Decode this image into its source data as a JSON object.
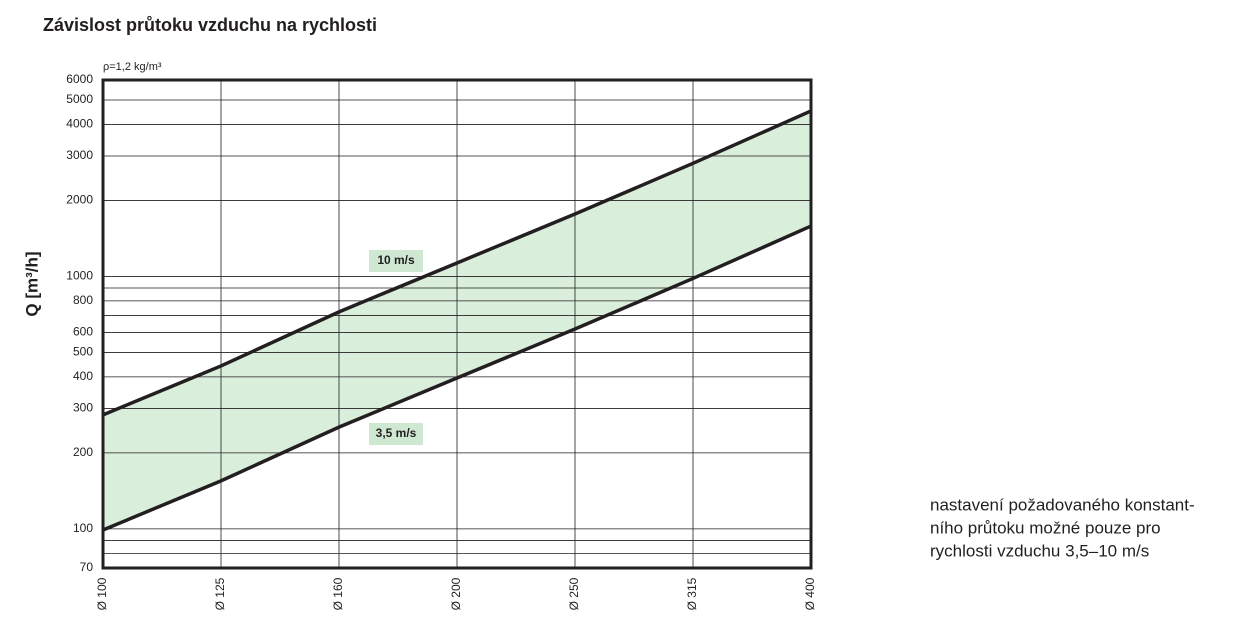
{
  "chart_data": {
    "type": "band",
    "title": "Závislost průtoku vzduchu na rychlosti",
    "subtitle": "ρ=1,2 kg/m³",
    "y_label": "Q [m³/h]",
    "categories": [
      "Ø 100",
      "Ø 125",
      "Ø 160",
      "Ø 200",
      "Ø 250",
      "Ø 315",
      "Ø 400"
    ],
    "series": [
      {
        "name": "10 m/s",
        "color": "#231f20",
        "values": [
          283,
          442,
          724,
          1131,
          1767,
          2806,
          4524
        ]
      },
      {
        "name": "3,5 m/s",
        "color": "#231f20",
        "values": [
          99,
          155,
          253,
          396,
          619,
          982,
          1583
        ]
      }
    ],
    "band_color": "#d9eedb",
    "label_color": "#cfe8d2",
    "log_y": true,
    "ylim": [
      70,
      6000
    ],
    "yticks": [
      70,
      100,
      200,
      300,
      400,
      500,
      600,
      800,
      1000,
      2000,
      3000,
      4000,
      5000,
      6000
    ],
    "minor_yticks": [
      80,
      90,
      700,
      900
    ],
    "grid": true,
    "note": [
      "nastavení požadovaného konstant-",
      "ního průtoku možné pouze pro",
      "rychlosti vzduchu 3,5–10 m/s"
    ]
  }
}
